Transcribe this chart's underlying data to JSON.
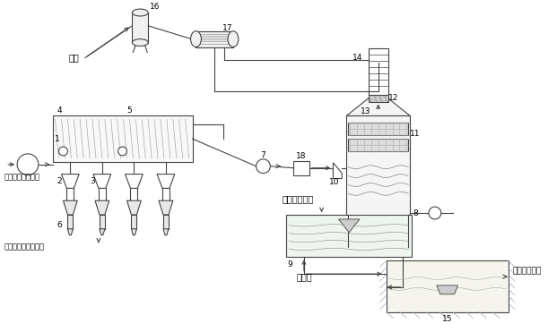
{
  "bg_color": "#ffffff",
  "lc": "#444444",
  "labels": {
    "kongqi": "空气",
    "flue_gas": "催化裂化再生烟气",
    "waste_catalyst": "至装置区废催化剂罐",
    "naoh": "氢氧化钠溶液",
    "oxidation": "氧化风",
    "waste_water": "至废水处理厂"
  },
  "nums": [
    "1",
    "2",
    "3",
    "4",
    "5",
    "6",
    "7",
    "8",
    "9",
    "10",
    "11",
    "12",
    "13",
    "14",
    "15",
    "16",
    "17",
    "18"
  ]
}
